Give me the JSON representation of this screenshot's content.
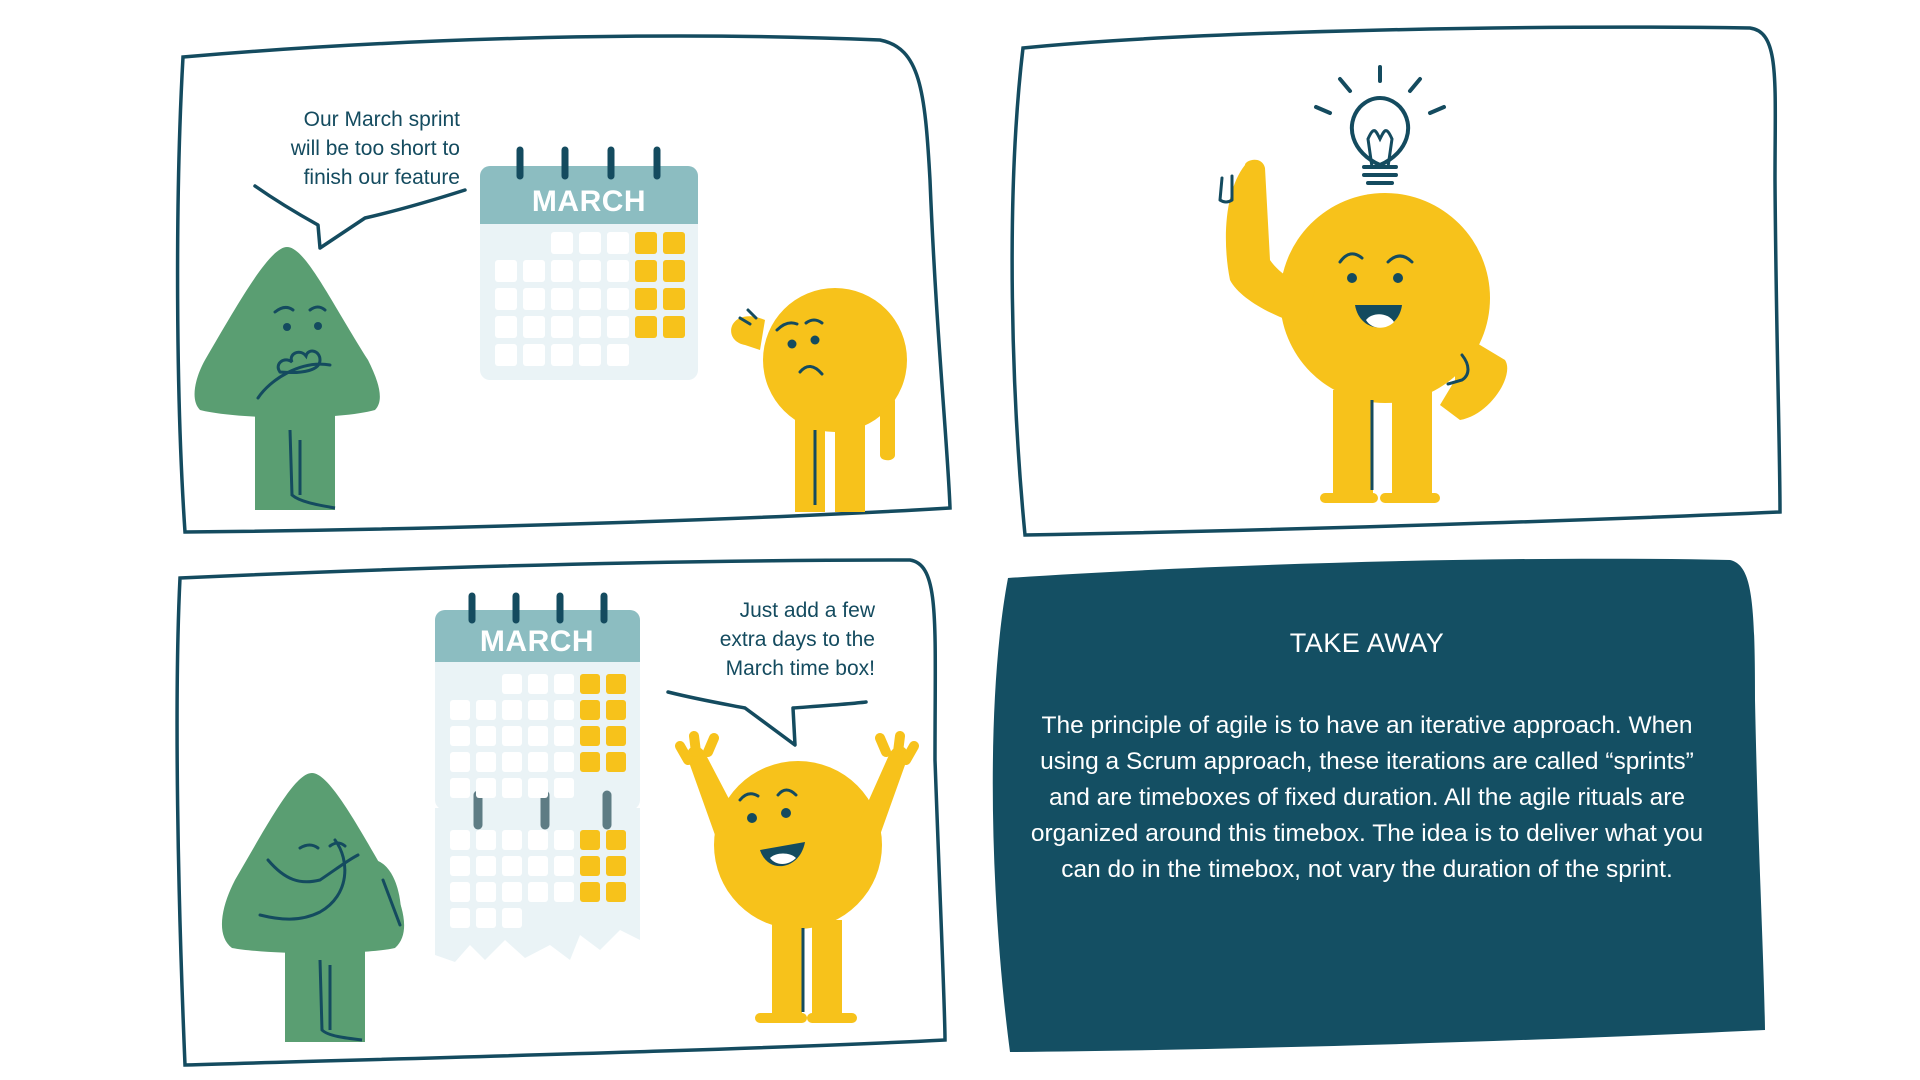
{
  "panel1": {
    "speech_lines": [
      "Our March sprint",
      "will be too short to",
      "finish our feature"
    ],
    "calendar_month": "MARCH"
  },
  "panel2": {},
  "panel3": {
    "calendar_month": "MARCH",
    "speech_lines": [
      "Just add a few",
      "extra days to the",
      "March time box!"
    ]
  },
  "takeaway": {
    "title": "TAKE AWAY",
    "body": "The principle of agile is to have an iterative approach. When using a Scrum approach, these iterations are called “sprints” and are timeboxes of fixed duration. All the agile rituals are organized around this timebox. The idea is to deliver what you can do in the timebox, not vary the duration of the sprint."
  },
  "colors": {
    "ink": "#144b5f",
    "yellow": "#f7c21b",
    "green": "#5a9e72",
    "calendar_header": "#8cbdc1",
    "calendar_body": "#eaf3f6",
    "takeaway_bg": "#144f63"
  },
  "icons": [
    "lightbulb-icon"
  ]
}
